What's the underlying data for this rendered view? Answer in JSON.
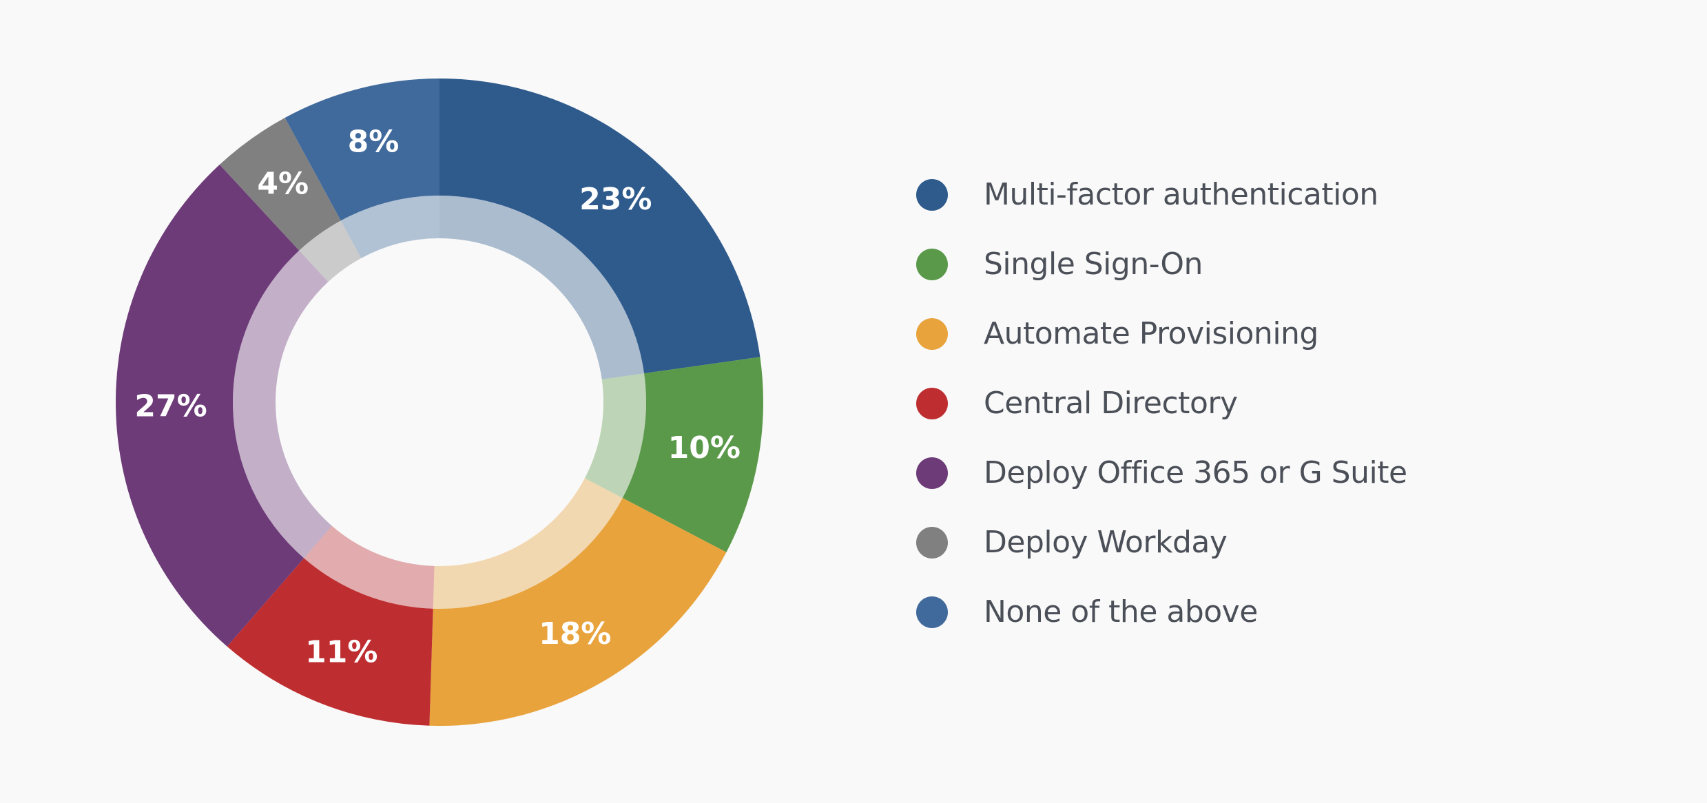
{
  "chart_data": {
    "type": "pie",
    "variant": "donut",
    "title": "",
    "slices": [
      {
        "name": "Multi-factor authentication",
        "value": 23,
        "label": "23%",
        "color": "#2e5a8c"
      },
      {
        "name": "Single Sign-On",
        "value": 10,
        "label": "10%",
        "color": "#5b994a"
      },
      {
        "name": "Automate Provisioning",
        "value": 18,
        "label": "18%",
        "color": "#e8a33d"
      },
      {
        "name": "Central Directory",
        "value": 11,
        "label": "11%",
        "color": "#be2e31"
      },
      {
        "name": "Deploy Office 365 or G Suite",
        "value": 27,
        "label": "27%",
        "color": "#6d3b78"
      },
      {
        "name": "Deploy Workday",
        "value": 4,
        "label": "4%",
        "color": "#808080"
      },
      {
        "name": "None of the above",
        "value": 8,
        "label": "8%",
        "color": "#406a9c"
      }
    ],
    "legend_position": "right",
    "start_angle": "top",
    "direction": "clockwise"
  }
}
